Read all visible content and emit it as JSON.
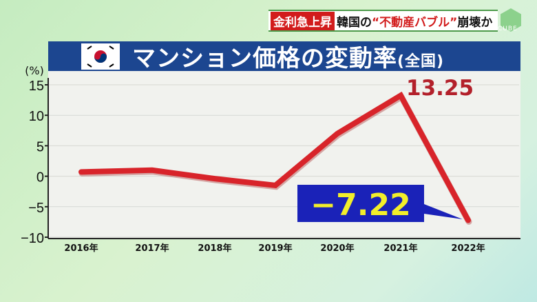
{
  "headline": {
    "tag": "金利急上昇",
    "prefix": "韓国の",
    "quoted": "“不動産バブル”",
    "suffix": "崩壊か",
    "logo": "CUBE"
  },
  "title": {
    "main": "マンション価格の変動率",
    "sub": "(全国)",
    "flag_icon": "south-korea-flag-icon"
  },
  "chart_data": {
    "type": "line",
    "title": "マンション価格の変動率(全国)",
    "ylabel": "(%)",
    "categories": [
      "2016年",
      "2017年",
      "2018年",
      "2019年",
      "2020年",
      "2021年",
      "2022年"
    ],
    "series": [
      {
        "values": [
          0.7,
          1.0,
          -0.4,
          -1.5,
          7.0,
          13.25,
          -7.22
        ],
        "color": "#d8242a"
      }
    ],
    "ylim": [
      -10,
      15
    ],
    "yticks": [
      "15",
      "10",
      "5",
      "0",
      "−5",
      "−10"
    ],
    "grid": true,
    "annotations": [
      {
        "text": "13.25",
        "category": "2021年",
        "color": "#b3202a"
      },
      {
        "text": "−7.22",
        "category": "2022年",
        "color": "#f2ee2a",
        "background": "#1a22b8"
      }
    ]
  }
}
